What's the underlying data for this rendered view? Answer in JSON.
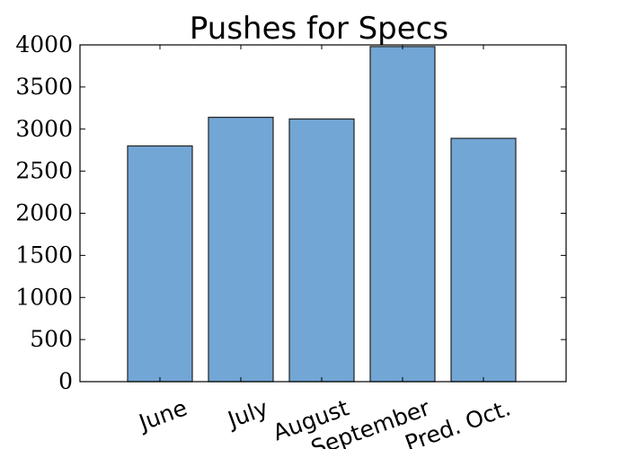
{
  "chart_data": {
    "type": "bar",
    "title": "Pushes for Specs",
    "xlabel": "",
    "ylabel": "",
    "categories": [
      "June",
      "July",
      "August",
      "September",
      "Pred. Oct."
    ],
    "values": [
      2800,
      3140,
      3120,
      3980,
      2890
    ],
    "ylim": [
      0,
      4000
    ],
    "yticks": [
      0,
      500,
      1000,
      1500,
      2000,
      2500,
      3000,
      3500,
      4000
    ],
    "grid": false,
    "legend": "none",
    "bar_color": "#72a6d5",
    "edge_color": "#222222",
    "x_tick_rotation_deg": 20
  }
}
